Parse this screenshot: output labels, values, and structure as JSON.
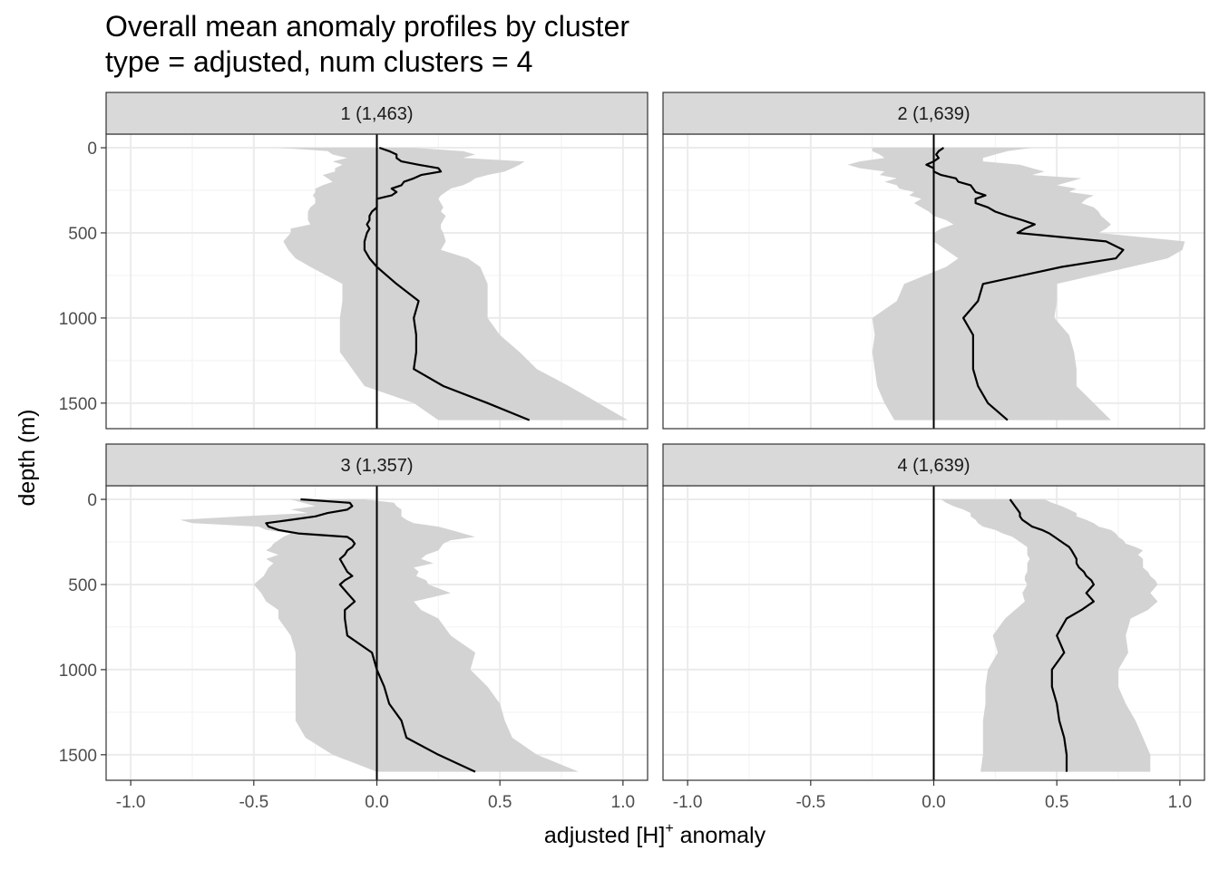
{
  "chart_data": {
    "type": "line",
    "title": "Overall mean anomaly profiles by cluster",
    "subtitle": "type = adjusted, num clusters = 4",
    "xlabel_main": "adjusted [H]",
    "xlabel_sup": "+",
    "xlabel_tail": " anomaly",
    "ylabel": "depth (m)",
    "xlim": [
      -1.1,
      1.1
    ],
    "ylim": [
      1650,
      -80
    ],
    "x_ticks": [
      -1.0,
      -0.5,
      0.0,
      0.5,
      1.0
    ],
    "x_tick_labels": [
      "-1.0",
      "-0.5",
      "0.0",
      "0.5",
      "1.0"
    ],
    "y_ticks": [
      0,
      500,
      1000,
      1500
    ],
    "y_tick_labels": [
      "0",
      "500",
      "1000",
      "1500"
    ],
    "reference_line_x": 0,
    "panels": [
      {
        "label": "1 (1,463)",
        "depth": [
          0,
          20,
          40,
          60,
          80,
          100,
          120,
          140,
          160,
          180,
          200,
          220,
          240,
          260,
          280,
          300,
          325,
          350,
          375,
          400,
          425,
          450,
          475,
          500,
          550,
          600,
          650,
          700,
          800,
          900,
          1000,
          1100,
          1200,
          1300,
          1400,
          1500,
          1600
        ],
        "mean": [
          0.01,
          0.05,
          0.08,
          0.08,
          0.1,
          0.17,
          0.25,
          0.26,
          0.18,
          0.15,
          0.11,
          0.1,
          0.06,
          0.08,
          0.06,
          0.0,
          0.0,
          0.0,
          -0.02,
          -0.03,
          -0.03,
          -0.04,
          -0.03,
          -0.04,
          -0.05,
          -0.05,
          -0.03,
          0.0,
          0.08,
          0.17,
          0.15,
          0.16,
          0.16,
          0.15,
          0.27,
          0.45,
          0.62
        ],
        "lower": [
          -0.4,
          -0.2,
          -0.18,
          -0.12,
          -0.18,
          -0.14,
          -0.17,
          -0.17,
          -0.22,
          -0.2,
          -0.18,
          -0.22,
          -0.25,
          -0.25,
          -0.26,
          -0.25,
          -0.25,
          -0.27,
          -0.28,
          -0.28,
          -0.28,
          -0.27,
          -0.35,
          -0.35,
          -0.38,
          -0.36,
          -0.33,
          -0.27,
          -0.14,
          -0.14,
          -0.15,
          -0.15,
          -0.15,
          -0.1,
          -0.05,
          0.15,
          0.25
        ],
        "upper": [
          0.15,
          0.35,
          0.4,
          0.35,
          0.6,
          0.58,
          0.55,
          0.52,
          0.45,
          0.4,
          0.38,
          0.35,
          0.3,
          0.28,
          0.26,
          0.25,
          0.26,
          0.27,
          0.26,
          0.28,
          0.27,
          0.26,
          0.26,
          0.27,
          0.28,
          0.26,
          0.37,
          0.42,
          0.45,
          0.45,
          0.45,
          0.5,
          0.58,
          0.65,
          0.78,
          0.9,
          1.02
        ]
      },
      {
        "label": "2 (1,639)",
        "depth": [
          0,
          20,
          40,
          60,
          80,
          100,
          120,
          140,
          160,
          180,
          200,
          220,
          240,
          260,
          280,
          300,
          325,
          350,
          375,
          400,
          425,
          450,
          475,
          500,
          550,
          600,
          650,
          700,
          800,
          900,
          1000,
          1100,
          1200,
          1300,
          1400,
          1500,
          1600
        ],
        "mean": [
          0.04,
          0.02,
          0.01,
          0.02,
          0.0,
          -0.03,
          0.0,
          0.0,
          0.03,
          0.09,
          0.1,
          0.15,
          0.16,
          0.17,
          0.21,
          0.17,
          0.17,
          0.22,
          0.25,
          0.3,
          0.36,
          0.41,
          0.37,
          0.34,
          0.7,
          0.77,
          0.74,
          0.52,
          0.2,
          0.18,
          0.12,
          0.16,
          0.16,
          0.16,
          0.18,
          0.22,
          0.3
        ],
        "lower": [
          -0.25,
          -0.25,
          -0.22,
          -0.2,
          -0.3,
          -0.35,
          -0.3,
          -0.2,
          -0.22,
          -0.15,
          -0.2,
          -0.15,
          -0.14,
          -0.08,
          -0.1,
          -0.05,
          -0.08,
          -0.05,
          -0.02,
          0.0,
          0.05,
          0.08,
          0.03,
          0.0,
          0.0,
          0.05,
          0.1,
          0.05,
          -0.12,
          -0.15,
          -0.25,
          -0.24,
          -0.25,
          -0.24,
          -0.23,
          -0.2,
          -0.16
        ],
        "upper": [
          0.4,
          0.3,
          0.25,
          0.2,
          0.2,
          0.35,
          0.4,
          0.45,
          0.4,
          0.6,
          0.55,
          0.5,
          0.58,
          0.55,
          0.65,
          0.62,
          0.6,
          0.65,
          0.67,
          0.68,
          0.7,
          0.72,
          0.7,
          0.67,
          1.02,
          1.01,
          0.95,
          0.8,
          0.5,
          0.5,
          0.49,
          0.55,
          0.57,
          0.58,
          0.58,
          0.65,
          0.72
        ]
      },
      {
        "label": "3 (1,357)",
        "depth": [
          0,
          20,
          40,
          60,
          80,
          100,
          120,
          140,
          160,
          180,
          200,
          220,
          240,
          260,
          280,
          300,
          325,
          350,
          375,
          400,
          425,
          450,
          475,
          500,
          550,
          600,
          650,
          700,
          800,
          900,
          1000,
          1100,
          1200,
          1300,
          1400,
          1500,
          1600
        ],
        "mean": [
          -0.31,
          -0.11,
          -0.1,
          -0.12,
          -0.2,
          -0.25,
          -0.35,
          -0.45,
          -0.44,
          -0.4,
          -0.32,
          -0.12,
          -0.1,
          -0.09,
          -0.1,
          -0.12,
          -0.13,
          -0.15,
          -0.14,
          -0.13,
          -0.12,
          -0.1,
          -0.13,
          -0.15,
          -0.12,
          -0.09,
          -0.13,
          -0.13,
          -0.12,
          -0.02,
          0.0,
          0.03,
          0.05,
          0.1,
          0.12,
          0.25,
          0.4
        ],
        "lower": [
          -0.35,
          -0.3,
          -0.25,
          -0.35,
          -0.28,
          -0.55,
          -0.8,
          -0.75,
          -0.48,
          -0.45,
          -0.35,
          -0.38,
          -0.4,
          -0.42,
          -0.43,
          -0.45,
          -0.4,
          -0.45,
          -0.42,
          -0.44,
          -0.45,
          -0.46,
          -0.48,
          -0.5,
          -0.47,
          -0.45,
          -0.4,
          -0.4,
          -0.35,
          -0.33,
          -0.33,
          -0.33,
          -0.33,
          -0.33,
          -0.29,
          -0.18,
          0.0
        ],
        "upper": [
          -0.05,
          0.07,
          0.08,
          0.1,
          0.1,
          0.1,
          0.12,
          0.15,
          0.25,
          0.3,
          0.35,
          0.4,
          0.3,
          0.27,
          0.26,
          0.25,
          0.2,
          0.18,
          0.23,
          0.15,
          0.17,
          0.16,
          0.2,
          0.21,
          0.3,
          0.15,
          0.18,
          0.25,
          0.3,
          0.4,
          0.38,
          0.45,
          0.5,
          0.52,
          0.55,
          0.65,
          0.82
        ]
      },
      {
        "label": "4 (1,639)",
        "depth": [
          0,
          20,
          40,
          60,
          80,
          100,
          120,
          140,
          160,
          180,
          200,
          220,
          240,
          260,
          280,
          300,
          325,
          350,
          375,
          400,
          425,
          450,
          475,
          500,
          550,
          600,
          650,
          700,
          800,
          900,
          1000,
          1100,
          1200,
          1300,
          1400,
          1500,
          1600
        ],
        "mean": [
          0.31,
          0.32,
          0.33,
          0.34,
          0.35,
          0.35,
          0.36,
          0.38,
          0.4,
          0.44,
          0.47,
          0.49,
          0.51,
          0.53,
          0.55,
          0.56,
          0.57,
          0.58,
          0.58,
          0.59,
          0.61,
          0.62,
          0.64,
          0.65,
          0.62,
          0.65,
          0.6,
          0.54,
          0.5,
          0.53,
          0.48,
          0.48,
          0.5,
          0.51,
          0.53,
          0.54,
          0.54
        ],
        "lower": [
          0.03,
          0.05,
          0.08,
          0.12,
          0.15,
          0.15,
          0.17,
          0.18,
          0.2,
          0.25,
          0.28,
          0.32,
          0.34,
          0.36,
          0.38,
          0.38,
          0.38,
          0.39,
          0.38,
          0.38,
          0.38,
          0.37,
          0.37,
          0.38,
          0.36,
          0.37,
          0.33,
          0.29,
          0.24,
          0.26,
          0.22,
          0.21,
          0.21,
          0.2,
          0.2,
          0.2,
          0.19
        ],
        "upper": [
          0.45,
          0.48,
          0.52,
          0.55,
          0.58,
          0.58,
          0.62,
          0.65,
          0.67,
          0.72,
          0.74,
          0.75,
          0.77,
          0.78,
          0.82,
          0.85,
          0.83,
          0.85,
          0.85,
          0.85,
          0.87,
          0.88,
          0.9,
          0.91,
          0.88,
          0.91,
          0.87,
          0.8,
          0.78,
          0.79,
          0.75,
          0.75,
          0.78,
          0.82,
          0.85,
          0.88,
          0.88
        ]
      }
    ]
  },
  "colors": {
    "background": "#ffffff",
    "strip_fill": "#d9d9d9",
    "panel_border": "#333333",
    "grid_major": "#ebebeb",
    "grid_minor": "#f2f2f2",
    "ribbon_fill": "#d3d3d3",
    "line": "#000000",
    "tick_text": "#4d4d4d"
  }
}
